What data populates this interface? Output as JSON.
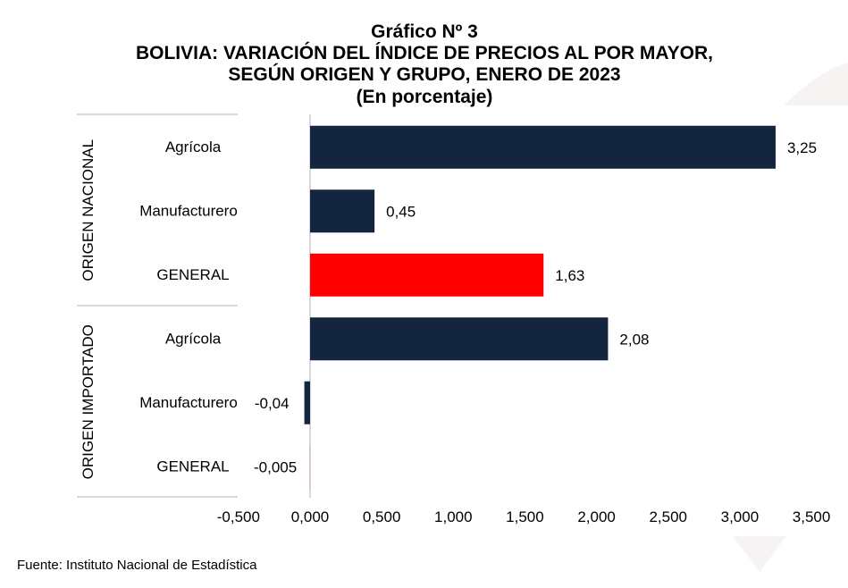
{
  "title_lines": [
    "Gráfico Nº 3",
    "BOLIVIA: VARIACIÓN DEL ÍNDICE DE PRECIOS AL POR MAYOR,",
    "SEGÚN ORIGEN Y GRUPO, ENERO DE 2023",
    "(En porcentaje)"
  ],
  "source": "Fuente: Instituto Nacional de Estadística",
  "colors": {
    "bar": "#13253f",
    "highlight": "#ff0000",
    "axis": "#d9d9d9",
    "watermark": "#f7f3f2"
  },
  "chart_data": {
    "type": "bar",
    "orientation": "horizontal",
    "groups": [
      {
        "name": "ORIGEN NACIONAL",
        "categories": [
          "Agrícola",
          "Manufacturero",
          "GENERAL"
        ]
      },
      {
        "name": "ORIGEN IMPORTADO",
        "categories": [
          "Agrícola",
          "Manufacturero",
          "GENERAL"
        ]
      }
    ],
    "bars": [
      {
        "group": "ORIGEN NACIONAL",
        "category": "Agrícola",
        "value": 3.25,
        "label": "3,25",
        "highlight": false
      },
      {
        "group": "ORIGEN NACIONAL",
        "category": "Manufacturero",
        "value": 0.45,
        "label": "0,45",
        "highlight": false
      },
      {
        "group": "ORIGEN NACIONAL",
        "category": "GENERAL",
        "value": 1.63,
        "label": "1,63",
        "highlight": true
      },
      {
        "group": "ORIGEN IMPORTADO",
        "category": "Agrícola",
        "value": 2.08,
        "label": "2,08",
        "highlight": false
      },
      {
        "group": "ORIGEN IMPORTADO",
        "category": "Manufacturero",
        "value": -0.04,
        "label": "-0,04",
        "highlight": false
      },
      {
        "group": "ORIGEN IMPORTADO",
        "category": "GENERAL",
        "value": -0.005,
        "label": "-0,005",
        "highlight": true
      }
    ],
    "xlim": [
      -0.5,
      3.5
    ],
    "xticks": [
      -0.5,
      0,
      0.5,
      1,
      1.5,
      2,
      2.5,
      3,
      3.5
    ],
    "xtick_labels": [
      "-0,500",
      "0,000",
      "0,500",
      "1,000",
      "1,500",
      "2,000",
      "2,500",
      "3,000",
      "3,500"
    ],
    "title": "BOLIVIA: VARIACIÓN DEL ÍNDICE DE PRECIOS AL POR MAYOR, SEGÚN ORIGEN Y GRUPO, ENERO DE 2023",
    "subtitle": "(En porcentaje)",
    "xlabel": "",
    "ylabel": "",
    "grid": false,
    "legend": "none"
  }
}
